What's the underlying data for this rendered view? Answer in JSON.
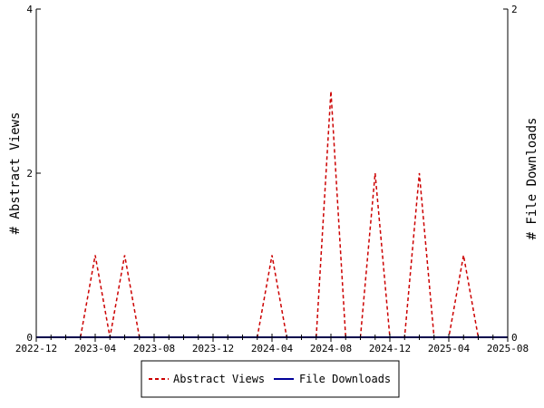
{
  "colors": {
    "abstract_views": "#cc0000",
    "file_downloads": "#000099",
    "axis": "#000000",
    "background": "#ffffff"
  },
  "chart_data": {
    "type": "line",
    "title": "",
    "x_axis": {
      "type": "date",
      "range": [
        "2022-12",
        "2025-08"
      ],
      "tick_labels": [
        "2022-12",
        "2023-04",
        "2023-08",
        "2023-12",
        "2024-04",
        "2024-08",
        "2024-12",
        "2025-04",
        "2025-08"
      ],
      "minor_ticks": "monthly"
    },
    "y_axis_left": {
      "label": "# Abstract Views",
      "range": [
        0,
        4
      ],
      "tick_labels": [
        "0",
        "2",
        "4"
      ]
    },
    "y_axis_right": {
      "label": "# File Downloads",
      "range": [
        0,
        2
      ],
      "tick_labels": [
        "0",
        "2"
      ]
    },
    "x": [
      "2022-12",
      "2023-01",
      "2023-02",
      "2023-03",
      "2023-04",
      "2023-05",
      "2023-06",
      "2023-07",
      "2023-08",
      "2023-09",
      "2023-10",
      "2023-11",
      "2023-12",
      "2024-01",
      "2024-02",
      "2024-03",
      "2024-04",
      "2024-05",
      "2024-06",
      "2024-07",
      "2024-08",
      "2024-09",
      "2024-10",
      "2024-11",
      "2024-12",
      "2025-01",
      "2025-02",
      "2025-03",
      "2025-04",
      "2025-05",
      "2025-06",
      "2025-07",
      "2025-08"
    ],
    "series": [
      {
        "name": "Abstract Views",
        "axis": "left",
        "style": "dashed",
        "values": [
          0,
          0,
          0,
          0,
          1,
          0,
          1,
          0,
          0,
          0,
          0,
          0,
          0,
          0,
          0,
          0,
          1,
          0,
          0,
          0,
          3,
          0,
          0,
          2,
          0,
          0,
          2,
          0,
          0,
          1,
          0,
          0,
          0
        ]
      },
      {
        "name": "File Downloads",
        "axis": "right",
        "style": "solid",
        "values": [
          0,
          0,
          0,
          0,
          0,
          0,
          0,
          0,
          0,
          0,
          0,
          0,
          0,
          0,
          0,
          0,
          0,
          0,
          0,
          0,
          0,
          0,
          0,
          0,
          0,
          0,
          0,
          0,
          0,
          0,
          0,
          0,
          0
        ]
      }
    ],
    "grid": false,
    "legend": {
      "placement": "bottom-center"
    }
  }
}
